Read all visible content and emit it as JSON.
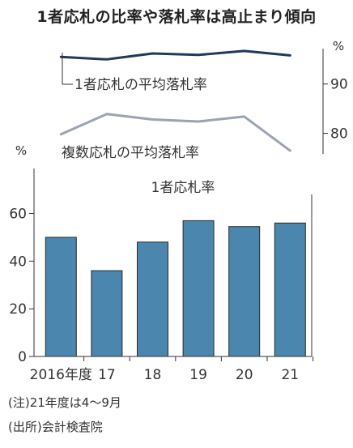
{
  "title": "1者応札の比率や落札率は高止まり傾向",
  "colors": {
    "one_bidder_line": "#1f3a5c",
    "multi_bidder_line": "#9aa4b3",
    "bar": "#4a86ad",
    "axis": "#333333"
  },
  "chart_data": [
    {
      "type": "line",
      "unit": "%",
      "categories": [
        "2016年度",
        "17",
        "18",
        "19",
        "20",
        "21"
      ],
      "ylim": [
        75,
        98
      ],
      "yticks": [
        80,
        90
      ],
      "series": [
        {
          "name": "1者応札の平均落札率",
          "values": [
            95.5,
            95.0,
            96.2,
            95.9,
            96.7,
            95.8
          ]
        },
        {
          "name": "複数応札の平均落札率",
          "values": [
            79.8,
            83.9,
            82.8,
            82.4,
            83.4,
            76.5
          ]
        }
      ],
      "grid": false
    },
    {
      "type": "bar",
      "title": "1者応札率",
      "unit": "%",
      "categories": [
        "2016年度",
        "17",
        "18",
        "19",
        "20",
        "21"
      ],
      "values": [
        50,
        36,
        48,
        57,
        54.5,
        56
      ],
      "ylim": [
        0,
        68
      ],
      "yticks": [
        0,
        20,
        40,
        60
      ],
      "grid": false
    }
  ],
  "notes": [
    "(注)21年度は4〜9月",
    "(出所)会計検査院"
  ]
}
